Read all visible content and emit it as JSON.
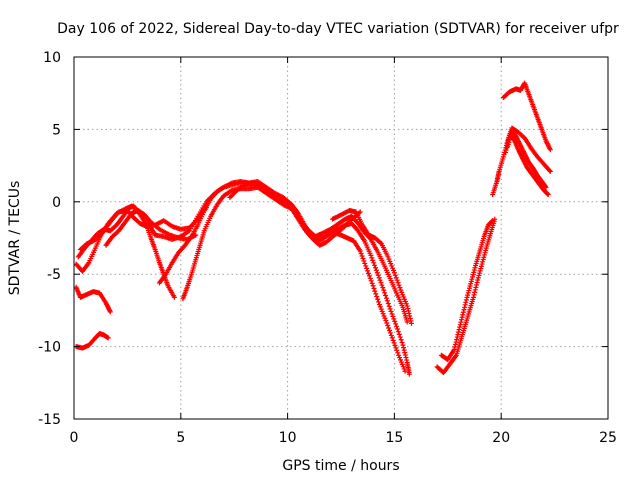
{
  "chart_data": {
    "type": "scatter",
    "title": "Day 106 of 2022, Sidereal Day-to-day VTEC variation (SDTVAR) for receiver ufpr",
    "xlabel": "GPS time / hours",
    "ylabel": "SDTVAR / TECUs",
    "xlim": [
      0,
      25
    ],
    "ylim": [
      -15,
      10
    ],
    "xticks": [
      "0",
      "5",
      "10",
      "15",
      "20",
      "25"
    ],
    "yticks": [
      "10",
      "5",
      "0",
      "-5",
      "-10",
      "-15"
    ],
    "grid": true,
    "marker": "plus",
    "color": "#ff0000",
    "series": [
      {
        "points": [
          [
            0.1,
            -10.0
          ],
          [
            0.4,
            -10.1
          ],
          [
            0.7,
            -9.9
          ],
          [
            1.0,
            -9.4
          ],
          [
            1.2,
            -9.1
          ],
          [
            1.4,
            -9.2
          ],
          [
            1.6,
            -9.4
          ]
        ]
      },
      {
        "points": [
          [
            0.1,
            -5.9
          ],
          [
            0.3,
            -6.6
          ],
          [
            0.6,
            -6.4
          ],
          [
            0.9,
            -6.2
          ],
          [
            1.2,
            -6.3
          ],
          [
            1.5,
            -7.0
          ],
          [
            1.7,
            -7.6
          ]
        ]
      },
      {
        "points": [
          [
            0.1,
            -4.3
          ],
          [
            0.4,
            -4.8
          ],
          [
            0.7,
            -4.2
          ],
          [
            1.0,
            -3.2
          ],
          [
            1.3,
            -2.2
          ],
          [
            1.6,
            -1.5
          ],
          [
            2.0,
            -0.8
          ],
          [
            2.4,
            -0.5
          ],
          [
            2.7,
            -0.3
          ],
          [
            3.0,
            -0.6
          ],
          [
            3.3,
            -0.9
          ],
          [
            3.6,
            -1.4
          ],
          [
            4.0,
            -1.9
          ],
          [
            4.5,
            -2.3
          ],
          [
            4.9,
            -2.5
          ],
          [
            5.3,
            -2.6
          ],
          [
            5.7,
            -2.3
          ]
        ]
      },
      {
        "points": [
          [
            0.2,
            -3.8
          ],
          [
            0.5,
            -3.2
          ],
          [
            0.8,
            -2.7
          ],
          [
            1.1,
            -2.2
          ],
          [
            1.4,
            -1.9
          ],
          [
            1.7,
            -2.0
          ],
          [
            2.0,
            -1.6
          ],
          [
            2.3,
            -1.0
          ],
          [
            2.6,
            -0.4
          ],
          [
            2.8,
            -0.3
          ],
          [
            3.1,
            -0.9
          ],
          [
            3.4,
            -1.6
          ],
          [
            3.6,
            -2.5
          ],
          [
            3.8,
            -3.3
          ],
          [
            4.0,
            -4.2
          ],
          [
            4.2,
            -5.0
          ],
          [
            4.4,
            -5.8
          ],
          [
            4.7,
            -6.6
          ]
        ]
      },
      {
        "points": [
          [
            0.3,
            -3.3
          ],
          [
            0.6,
            -2.9
          ],
          [
            0.9,
            -2.7
          ],
          [
            1.2,
            -2.4
          ],
          [
            1.5,
            -1.8
          ],
          [
            1.8,
            -1.2
          ],
          [
            2.1,
            -0.7
          ],
          [
            2.5,
            -0.6
          ],
          [
            2.8,
            -1.1
          ],
          [
            3.1,
            -1.5
          ],
          [
            3.4,
            -1.7
          ],
          [
            3.8,
            -1.6
          ],
          [
            4.2,
            -1.3
          ],
          [
            4.6,
            -1.7
          ],
          [
            5.0,
            -1.9
          ],
          [
            5.4,
            -1.8
          ],
          [
            5.8,
            -1.2
          ],
          [
            6.2,
            -0.4
          ]
        ]
      },
      {
        "points": [
          [
            1.5,
            -3.0
          ],
          [
            1.8,
            -2.4
          ],
          [
            2.1,
            -2.0
          ],
          [
            2.4,
            -1.4
          ],
          [
            2.7,
            -0.8
          ],
          [
            3.0,
            -0.6
          ],
          [
            3.3,
            -0.9
          ],
          [
            3.6,
            -1.8
          ],
          [
            3.8,
            -2.3
          ],
          [
            4.2,
            -2.4
          ],
          [
            4.6,
            -2.6
          ],
          [
            5.0,
            -2.4
          ],
          [
            5.4,
            -2.0
          ],
          [
            5.8,
            -1.0
          ],
          [
            6.2,
            0.0
          ],
          [
            6.6,
            0.6
          ],
          [
            7.0,
            1.0
          ],
          [
            7.5,
            1.2
          ],
          [
            8.0,
            1.3
          ],
          [
            8.5,
            1.2
          ],
          [
            9.0,
            0.8
          ],
          [
            9.5,
            0.4
          ],
          [
            10.0,
            -0.1
          ],
          [
            10.3,
            -0.6
          ],
          [
            10.6,
            -1.3
          ],
          [
            10.9,
            -2.1
          ],
          [
            11.2,
            -2.6
          ],
          [
            11.5,
            -3.0
          ],
          [
            11.8,
            -2.8
          ],
          [
            12.2,
            -2.3
          ],
          [
            12.6,
            -1.8
          ],
          [
            13.0,
            -1.2
          ],
          [
            13.4,
            -0.7
          ]
        ]
      },
      {
        "points": [
          [
            4.0,
            -5.6
          ],
          [
            4.3,
            -5.0
          ],
          [
            4.6,
            -4.2
          ],
          [
            4.9,
            -3.5
          ],
          [
            5.2,
            -3.0
          ],
          [
            5.5,
            -2.4
          ],
          [
            5.8,
            -1.6
          ],
          [
            6.1,
            -0.6
          ],
          [
            6.4,
            0.2
          ],
          [
            6.7,
            0.7
          ],
          [
            7.0,
            1.0
          ],
          [
            7.4,
            1.3
          ],
          [
            7.8,
            1.4
          ],
          [
            8.2,
            1.3
          ],
          [
            8.6,
            1.4
          ],
          [
            9.0,
            1.0
          ],
          [
            9.4,
            0.6
          ],
          [
            9.8,
            0.3
          ],
          [
            10.2,
            -0.2
          ],
          [
            10.5,
            -0.8
          ],
          [
            10.8,
            -1.6
          ],
          [
            11.1,
            -2.3
          ],
          [
            11.4,
            -2.7
          ],
          [
            11.7,
            -2.5
          ],
          [
            12.0,
            -2.1
          ],
          [
            12.3,
            -1.9
          ],
          [
            12.7,
            -1.6
          ],
          [
            13.0,
            -1.5
          ],
          [
            13.3,
            -2.0
          ],
          [
            13.6,
            -2.7
          ],
          [
            13.9,
            -3.7
          ],
          [
            14.2,
            -4.9
          ],
          [
            14.5,
            -6.1
          ],
          [
            14.8,
            -7.4
          ],
          [
            15.1,
            -8.6
          ],
          [
            15.4,
            -9.9
          ],
          [
            15.6,
            -11.1
          ],
          [
            15.7,
            -11.9
          ]
        ]
      },
      {
        "points": [
          [
            5.1,
            -6.7
          ],
          [
            5.3,
            -5.9
          ],
          [
            5.5,
            -5.0
          ],
          [
            5.7,
            -4.0
          ],
          [
            5.9,
            -3.0
          ],
          [
            6.1,
            -2.0
          ],
          [
            6.4,
            -1.0
          ],
          [
            6.7,
            -0.2
          ],
          [
            7.0,
            0.4
          ],
          [
            7.4,
            0.8
          ],
          [
            7.8,
            0.9
          ],
          [
            8.2,
            0.9
          ],
          [
            8.6,
            1.0
          ],
          [
            9.0,
            0.6
          ],
          [
            9.4,
            0.2
          ],
          [
            9.8,
            -0.2
          ],
          [
            10.2,
            -0.5
          ],
          [
            10.5,
            -1.2
          ],
          [
            10.8,
            -1.9
          ],
          [
            11.1,
            -2.4
          ],
          [
            11.4,
            -2.6
          ],
          [
            11.8,
            -2.4
          ],
          [
            12.1,
            -2.1
          ],
          [
            12.5,
            -2.3
          ],
          [
            12.8,
            -2.5
          ],
          [
            13.1,
            -2.7
          ],
          [
            13.4,
            -3.4
          ],
          [
            13.7,
            -4.6
          ],
          [
            14.0,
            -5.8
          ],
          [
            14.3,
            -7.1
          ],
          [
            14.6,
            -8.2
          ],
          [
            14.9,
            -9.4
          ],
          [
            15.2,
            -10.6
          ],
          [
            15.5,
            -11.7
          ]
        ]
      },
      {
        "points": [
          [
            7.3,
            0.3
          ],
          [
            7.7,
            0.9
          ],
          [
            8.1,
            1.2
          ],
          [
            8.5,
            1.3
          ],
          [
            8.9,
            1.0
          ],
          [
            9.3,
            0.6
          ],
          [
            9.7,
            0.3
          ],
          [
            10.1,
            -0.2
          ],
          [
            10.4,
            -0.9
          ],
          [
            10.7,
            -1.5
          ],
          [
            11.0,
            -2.0
          ],
          [
            11.3,
            -2.4
          ],
          [
            11.6,
            -2.2
          ],
          [
            12.0,
            -1.9
          ],
          [
            12.4,
            -1.5
          ],
          [
            12.7,
            -1.2
          ],
          [
            13.0,
            -1.0
          ],
          [
            13.3,
            -1.5
          ],
          [
            13.6,
            -2.1
          ],
          [
            13.9,
            -2.6
          ],
          [
            14.2,
            -3.4
          ],
          [
            14.5,
            -4.3
          ],
          [
            14.8,
            -5.3
          ],
          [
            15.1,
            -6.3
          ],
          [
            15.4,
            -7.3
          ],
          [
            15.6,
            -8.3
          ]
        ]
      },
      {
        "points": [
          [
            12.1,
            -1.2
          ],
          [
            12.5,
            -0.9
          ],
          [
            12.9,
            -0.6
          ],
          [
            13.2,
            -0.7
          ],
          [
            13.5,
            -1.6
          ],
          [
            13.8,
            -2.3
          ],
          [
            14.1,
            -2.5
          ],
          [
            14.4,
            -2.9
          ],
          [
            14.7,
            -3.8
          ],
          [
            15.0,
            -4.9
          ],
          [
            15.3,
            -6.1
          ],
          [
            15.6,
            -7.2
          ],
          [
            15.8,
            -8.4
          ]
        ]
      },
      {
        "points": [
          [
            17.0,
            -11.4
          ],
          [
            17.3,
            -11.8
          ],
          [
            17.6,
            -11.2
          ],
          [
            17.9,
            -10.6
          ],
          [
            18.1,
            -9.6
          ],
          [
            18.3,
            -8.6
          ],
          [
            18.5,
            -7.6
          ],
          [
            18.7,
            -6.6
          ],
          [
            18.9,
            -5.4
          ],
          [
            19.1,
            -4.3
          ],
          [
            19.3,
            -3.2
          ],
          [
            19.5,
            -2.2
          ],
          [
            19.7,
            -1.2
          ]
        ]
      },
      {
        "points": [
          [
            17.2,
            -10.6
          ],
          [
            17.5,
            -10.9
          ],
          [
            17.8,
            -10.2
          ],
          [
            18.0,
            -9.0
          ],
          [
            18.2,
            -7.8
          ],
          [
            18.4,
            -6.6
          ],
          [
            18.6,
            -5.5
          ],
          [
            18.8,
            -4.4
          ],
          [
            19.0,
            -3.4
          ],
          [
            19.2,
            -2.4
          ],
          [
            19.4,
            -1.6
          ],
          [
            19.6,
            -1.3
          ]
        ]
      },
      {
        "points": [
          [
            19.6,
            0.5
          ],
          [
            19.8,
            1.4
          ],
          [
            19.9,
            2.1
          ],
          [
            20.1,
            3.1
          ],
          [
            20.3,
            4.2
          ],
          [
            20.5,
            5.1
          ],
          [
            20.8,
            4.8
          ],
          [
            21.1,
            4.4
          ],
          [
            21.4,
            3.7
          ],
          [
            21.7,
            3.1
          ],
          [
            22.0,
            2.6
          ],
          [
            22.3,
            2.1
          ]
        ]
      },
      {
        "points": [
          [
            20.1,
            7.2
          ],
          [
            20.4,
            7.6
          ],
          [
            20.7,
            7.8
          ],
          [
            20.9,
            7.7
          ],
          [
            21.1,
            8.2
          ],
          [
            21.3,
            7.4
          ],
          [
            21.5,
            6.6
          ],
          [
            21.7,
            5.8
          ],
          [
            21.9,
            5.0
          ],
          [
            22.1,
            4.2
          ],
          [
            22.3,
            3.6
          ]
        ]
      },
      {
        "points": [
          [
            20.2,
            3.4
          ],
          [
            20.4,
            4.6
          ],
          [
            20.6,
            4.3
          ],
          [
            20.8,
            3.6
          ],
          [
            21.0,
            3.0
          ],
          [
            21.2,
            2.4
          ],
          [
            21.4,
            2.0
          ],
          [
            21.6,
            1.6
          ],
          [
            21.8,
            1.2
          ],
          [
            22.0,
            0.8
          ],
          [
            22.2,
            0.5
          ]
        ]
      },
      {
        "points": [
          [
            20.3,
            3.8
          ],
          [
            20.5,
            4.9
          ],
          [
            20.7,
            4.5
          ],
          [
            20.9,
            3.9
          ],
          [
            21.1,
            3.3
          ],
          [
            21.3,
            2.7
          ],
          [
            21.5,
            2.3
          ],
          [
            21.7,
            1.8
          ],
          [
            21.9,
            1.4
          ],
          [
            22.1,
            1.0
          ]
        ]
      }
    ]
  }
}
